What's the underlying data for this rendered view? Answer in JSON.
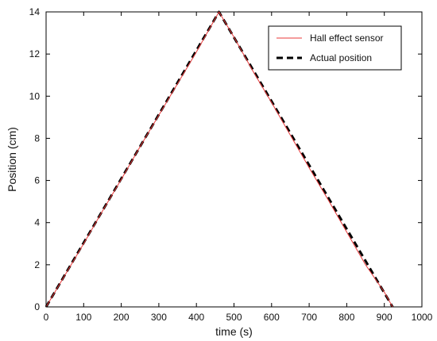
{
  "chart_data": {
    "type": "line",
    "title": "",
    "xlabel": "time (s)",
    "ylabel": "Position (cm)",
    "xlim": [
      0,
      1000
    ],
    "ylim": [
      0,
      14
    ],
    "xticks": [
      0,
      100,
      200,
      300,
      400,
      500,
      600,
      700,
      800,
      900,
      1000
    ],
    "yticks": [
      0,
      2,
      4,
      6,
      8,
      10,
      12,
      14
    ],
    "grid": false,
    "legend_position": "top-right",
    "series": [
      {
        "name": "Hall effect sensor",
        "color": "#e8393a",
        "style": "solid",
        "x": [
          0,
          50,
          100,
          150,
          200,
          250,
          300,
          350,
          400,
          460,
          500,
          550,
          600,
          650,
          700,
          750,
          800,
          850,
          900,
          922
        ],
        "y": [
          0,
          1.5,
          3.0,
          4.55,
          6.05,
          7.6,
          9.1,
          10.6,
          12.1,
          14.0,
          12.8,
          11.2,
          9.7,
          8.15,
          6.6,
          5.1,
          3.55,
          2.0,
          0.7,
          0
        ]
      },
      {
        "name": "Actual position",
        "color": "#000000",
        "style": "dashed",
        "x": [
          0,
          460,
          922
        ],
        "y": [
          0,
          14,
          0
        ]
      }
    ]
  }
}
